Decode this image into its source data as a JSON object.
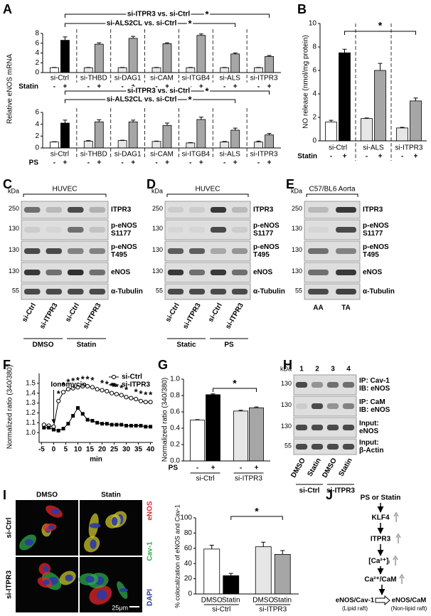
{
  "panel_labels": [
    "A",
    "B",
    "C",
    "D",
    "E",
    "F",
    "G",
    "H",
    "I",
    "J"
  ],
  "chart_data": [
    {
      "type": "bar",
      "ylabel": "Relative eNOS mRNA",
      "categories": [
        "si-Ctrl",
        "si-THBD",
        "si-DAG1",
        "si-CAM",
        "si-ITGB4",
        "si-ALS",
        "si-ITPR3"
      ],
      "treatment": "Statin",
      "series": [
        {
          "name": "-",
          "color": "#e6e6e6",
          "values": [
            1,
            1,
            1,
            1,
            1,
            1,
            1
          ],
          "errors": [
            0.05,
            0.05,
            0.05,
            0.05,
            0.05,
            0.05,
            0.05
          ]
        },
        {
          "name": "+",
          "color": "#a6a6a6",
          "values": [
            6.6,
            5.8,
            7.0,
            5.9,
            7.6,
            3.8,
            3.3
          ],
          "errors": [
            0.7,
            0.3,
            0.4,
            0.2,
            0.3,
            0.2,
            0.2
          ]
        }
      ],
      "control_colors": [
        "#ffffff",
        "#000000"
      ],
      "ylim": [
        0,
        8
      ],
      "yticks": [
        0,
        2,
        4,
        6,
        8
      ],
      "group_separators": true,
      "comparisons": [
        {
          "text": "si-ITPR3 vs. si-Ctrl",
          "mark": "*"
        },
        {
          "text": "si-ALS2CL vs. si-Ctrl",
          "mark": "*"
        }
      ]
    },
    {
      "type": "bar",
      "categories": [
        "si-Ctrl",
        "si-THBD",
        "si-DAG1",
        "si-CAM",
        "si-ITGB4",
        "si-ALS",
        "si-ITPR3"
      ],
      "treatment": "PS",
      "series": [
        {
          "name": "-",
          "color": "#e6e6e6",
          "values": [
            1,
            1.15,
            1.25,
            1.1,
            0.85,
            1.0,
            1.0
          ],
          "errors": [
            0.05,
            0.1,
            0.05,
            0.05,
            0.05,
            0.1,
            0.15
          ]
        },
        {
          "name": "+",
          "color": "#a6a6a6",
          "values": [
            4.2,
            4.4,
            4.4,
            3.8,
            4.8,
            3.0,
            2.2
          ],
          "errors": [
            0.5,
            0.35,
            0.3,
            0.4,
            0.4,
            0.35,
            0.25
          ]
        }
      ],
      "control_colors": [
        "#ffffff",
        "#000000"
      ],
      "ylim": [
        0,
        6
      ],
      "yticks": [
        0,
        2,
        4,
        6
      ],
      "group_separators": true,
      "comparisons": [
        {
          "text": "si-ITPR3 vs. si-Ctrl",
          "mark": "*"
        },
        {
          "text": "si-ALS2CL vs. si-Ctrl",
          "mark": "*"
        }
      ]
    },
    {
      "type": "bar",
      "ylabel": "NO release (nmol/mg protein)",
      "categories": [
        "si-Ctrl",
        "si-ALS",
        "si-ITPR3"
      ],
      "treatment": "Statin",
      "series": [
        {
          "name": "-",
          "color": "#e6e6e6",
          "values": [
            1.6,
            1.9,
            1.1
          ],
          "errors": [
            0.15,
            0.05,
            0.05
          ]
        },
        {
          "name": "+",
          "color": "#a6a6a6",
          "values": [
            7.5,
            6.0,
            3.4
          ],
          "errors": [
            0.3,
            0.6,
            0.25
          ]
        }
      ],
      "control_colors": [
        "#ffffff",
        "#000000"
      ],
      "ylim": [
        0,
        10
      ],
      "yticks": [
        0,
        2,
        4,
        6,
        8,
        10
      ],
      "group_separators": true,
      "significance": "*"
    },
    {
      "type": "line",
      "ylabel": "Normalized ratio (340/380)",
      "xlabel": "min",
      "x": [
        -4,
        -2,
        0,
        2,
        4,
        6,
        8,
        10,
        12,
        14,
        16,
        18,
        20,
        22,
        24,
        26,
        28,
        30,
        32,
        34,
        36,
        38,
        40
      ],
      "series": [
        {
          "name": "si-Ctrl",
          "marker": "circle-open",
          "color": "#000000",
          "values": [
            1.08,
            1.07,
            1.06,
            1.32,
            1.41,
            1.44,
            1.45,
            1.46,
            1.47,
            1.47,
            1.46,
            1.44,
            1.43,
            1.42,
            1.4,
            1.39,
            1.38,
            1.36,
            1.35,
            1.34,
            1.32,
            1.31,
            1.31
          ]
        },
        {
          "name": "si-ITPR3",
          "marker": "square",
          "color": "#000000",
          "values": [
            1.05,
            1.05,
            1.03,
            1.02,
            1.04,
            1.09,
            1.17,
            1.25,
            1.19,
            1.13,
            1.12,
            1.1,
            1.09,
            1.09,
            1.08,
            1.08,
            1.08,
            1.07,
            1.07,
            1.07,
            1.07,
            1.06,
            1.06
          ]
        }
      ],
      "xlim": [
        -6,
        41
      ],
      "xticks": [
        -5,
        0,
        5,
        10,
        15,
        20,
        25,
        30,
        35,
        40
      ],
      "ylim": [
        0.9,
        1.6
      ],
      "yticks": [
        {
          "value": 1.0,
          "label": "1.0"
        },
        {
          "value": 1.1,
          "label": "1.1"
        },
        {
          "value": 1.2,
          "label": "1.2"
        },
        {
          "value": 1.3,
          "label": "1.3"
        },
        {
          "value": 1.4,
          "label": "1.4"
        },
        {
          "value": 1.5,
          "label": "1.5"
        }
      ],
      "annotation": {
        "text": "Ionomycin",
        "x": 0
      },
      "legend": "upper right",
      "significance": {
        "label": "*",
        "x": [
          2,
          4,
          6,
          8,
          10,
          12,
          14,
          16,
          20,
          22,
          24,
          26,
          28,
          30,
          34,
          36,
          38,
          40
        ]
      }
    },
    {
      "type": "bar",
      "ylabel": "Normalized ratio (340/380)",
      "categories": [
        "si-Ctrl",
        "si-ITPR3"
      ],
      "treatment": "PS",
      "series": [
        {
          "name": "-",
          "color": "#e6e6e6",
          "values": [
            0.5,
            0.61
          ],
          "errors": [
            0.005,
            0.01
          ]
        },
        {
          "name": "+",
          "color": "#a6a6a6",
          "values": [
            0.81,
            0.65
          ],
          "errors": [
            0.01,
            0.01
          ]
        }
      ],
      "control_colors": [
        "#ffffff",
        "#000000"
      ],
      "ylim": [
        0,
        1
      ],
      "yticks": [
        {
          "value": 0,
          "label": "0.0"
        },
        {
          "value": 0.2,
          "label": "0.2"
        },
        {
          "value": 0.4,
          "label": "0.4"
        },
        {
          "value": 0.6,
          "label": "0.6"
        },
        {
          "value": 0.8,
          "label": "0.8"
        },
        {
          "value": 1,
          "label": "1.0"
        }
      ],
      "significance": "*"
    },
    {
      "type": "bar",
      "ylabel": "% colocalization of eNOS and Cav-1",
      "categories": [
        "si-Ctrl",
        "si-ITPR3"
      ],
      "series": [
        {
          "name": "DMSO",
          "color": "#e6e6e6",
          "values": [
            59,
            62
          ],
          "errors": [
            5,
            6
          ]
        },
        {
          "name": "Statin",
          "color": "#a6a6a6",
          "values": [
            24,
            52
          ],
          "errors": [
            3,
            5
          ]
        }
      ],
      "control_colors": [
        "#ffffff",
        "#000000"
      ],
      "ylim": [
        0,
        100
      ],
      "yticks": [
        0,
        20,
        40,
        60,
        80,
        100
      ],
      "significance": "*"
    }
  ],
  "blots": [
    {
      "header": "HUVEC",
      "kda_label": "kDa",
      "markers": [
        250,
        130,
        130,
        130,
        55
      ],
      "rows": [
        [
          "ITPR3"
        ],
        [
          "p-eNOS",
          "S1177"
        ],
        [
          "p-eNOS",
          "T495"
        ],
        [
          "eNOS"
        ],
        [
          "α-Tubulin"
        ]
      ],
      "lanes": [
        "si-Ctrl",
        "si-ITPR3",
        "si-Ctrl",
        "si-ITPR3"
      ],
      "groups": [
        "DMSO",
        "Statin"
      ]
    },
    {
      "header": "HUVEC",
      "kda_label": "kDa",
      "markers": [
        250,
        130,
        130,
        130,
        55
      ],
      "rows": [
        [
          "ITPR3"
        ],
        [
          "p-eNOS",
          "S1177"
        ],
        [
          "p-eNOS",
          "T495"
        ],
        [
          "eNOS"
        ],
        [
          "α-Tubulin"
        ]
      ],
      "lanes": [
        "si-Ctrl",
        "si-ITPR3",
        "si-Ctrl",
        "si-ITPR3"
      ],
      "groups": [
        "Static",
        "PS"
      ]
    },
    {
      "header": "C57/BL6 Aorta",
      "kda_label": "kDa",
      "markers": [
        250,
        130,
        130,
        130,
        55
      ],
      "rows": [
        [
          "ITPR3"
        ],
        [
          "p-eNOS",
          "S1177"
        ],
        [
          "p-eNOS",
          "T495"
        ],
        [
          "eNOS"
        ],
        [
          "α-Tubulin"
        ]
      ],
      "lanes": [
        "AA",
        "TA"
      ]
    },
    {
      "kda_label": "kDa",
      "lane_numbers": [
        1,
        2,
        3,
        4
      ],
      "markers": [
        130,
        130,
        130,
        55
      ],
      "rows": [
        [
          "IP: Cav-1",
          "IB: eNOS"
        ],
        [
          "IP: CaM",
          "IB: eNOS"
        ],
        [
          "Input:",
          "eNOS"
        ],
        [
          "Input:",
          "β-Actin"
        ]
      ],
      "lanes": [
        "DMSO",
        "Statin",
        "DMSO",
        "Statin"
      ],
      "groups": [
        "si-Ctrl",
        "si-ITPR3"
      ]
    }
  ],
  "micrographs": {
    "columns": [
      "DMSO",
      "Statin"
    ],
    "rows": [
      "si-Ctrl",
      "si-ITPR3"
    ],
    "channels": [
      {
        "name": "eNOS",
        "color": "#e3262b"
      },
      {
        "name": "Cav-1",
        "color": "#2ea84a"
      },
      {
        "name": "DAPI",
        "color": "#2b3aa6"
      }
    ],
    "scale_bar": "25μm"
  },
  "diagram": {
    "nodes": [
      "PS or Statin",
      "KLF4",
      "ITPR3",
      "[Ca²⁺]ᵢ",
      "Ca²⁺/CaM"
    ],
    "left": [
      "eNOS/Cav-1",
      "(Lipid raft)"
    ],
    "right": [
      "eNOS/CaM",
      "(Non-lipid raft)"
    ]
  }
}
